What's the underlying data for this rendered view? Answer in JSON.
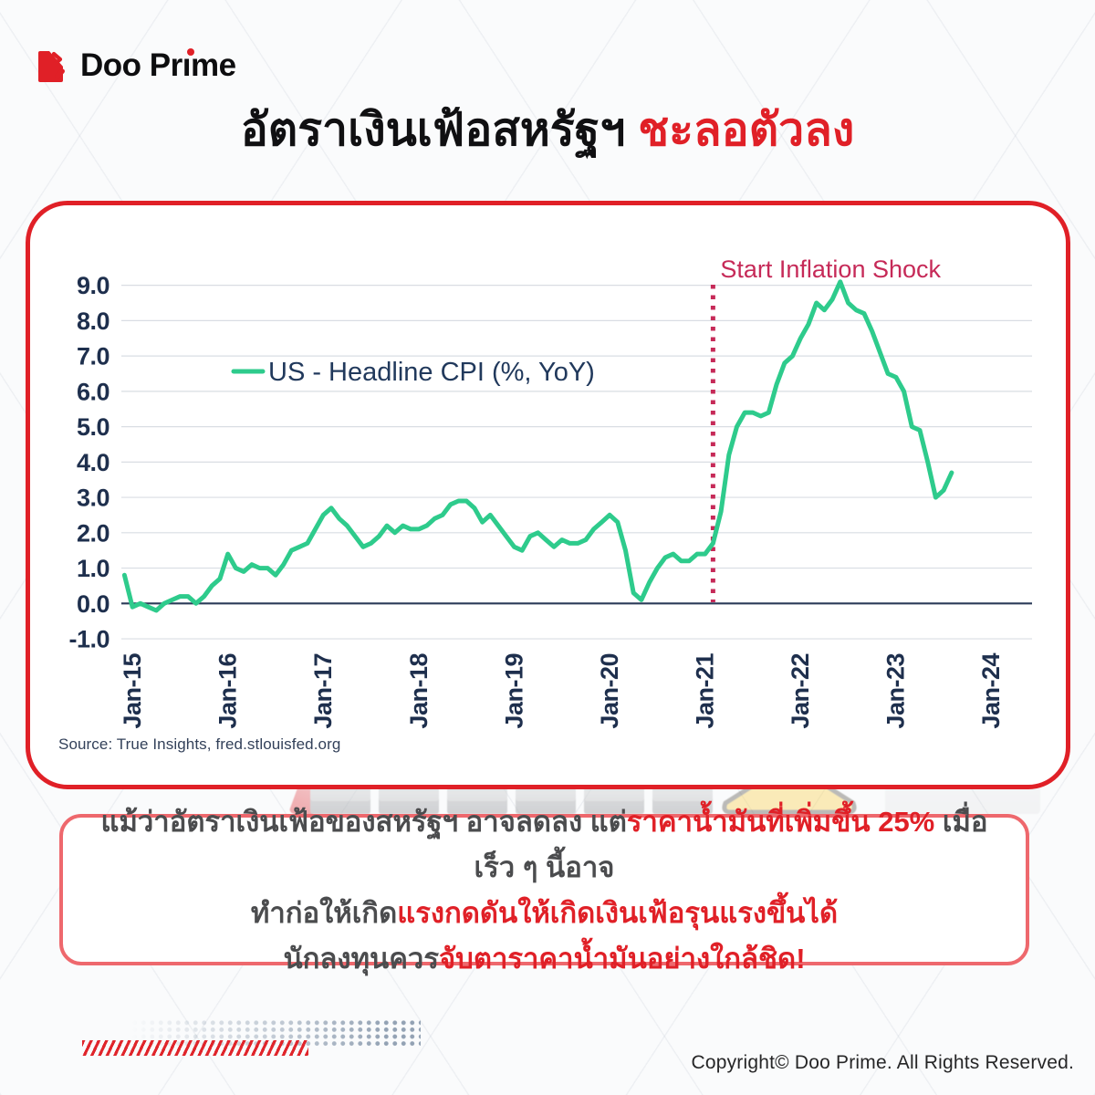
{
  "brand": {
    "name": "Doo Prime"
  },
  "title": {
    "black_part": "อัตราเงินเฟ้อสหรัฐฯ",
    "red_part": "ชะลอตัวลง"
  },
  "chart_data": {
    "type": "line",
    "title": "",
    "xlabel": "",
    "ylabel": "",
    "ylim": [
      -1.0,
      9.0
    ],
    "grid": true,
    "legend_position": "upper-left-inside",
    "y_ticks": [
      9,
      8,
      7,
      6,
      5,
      4,
      3,
      2,
      1,
      0,
      -1
    ],
    "x_ticks": [
      "Jan-15",
      "Jan-16",
      "Jan-17",
      "Jan-18",
      "Jan-19",
      "Jan-20",
      "Jan-21",
      "Jan-22",
      "Jan-23",
      "Jan-24"
    ],
    "legend": [
      {
        "label": "US - Headline CPI (%, YoY)",
        "color": "#2ecb8c"
      }
    ],
    "annotation": {
      "text": "Start Inflation Shock",
      "month": "Feb-21",
      "color": "#c62a58",
      "style": "dotted-vertical-line"
    },
    "series": [
      {
        "name": "US - Headline CPI (%, YoY)",
        "color": "#2ecb8c",
        "months": [
          "Dec-14",
          "Jan-15",
          "Feb-15",
          "Mar-15",
          "Apr-15",
          "May-15",
          "Jun-15",
          "Jul-15",
          "Aug-15",
          "Sep-15",
          "Oct-15",
          "Nov-15",
          "Dec-15",
          "Jan-16",
          "Feb-16",
          "Mar-16",
          "Apr-16",
          "May-16",
          "Jun-16",
          "Jul-16",
          "Aug-16",
          "Sep-16",
          "Oct-16",
          "Nov-16",
          "Dec-16",
          "Jan-17",
          "Feb-17",
          "Mar-17",
          "Apr-17",
          "May-17",
          "Jun-17",
          "Jul-17",
          "Aug-17",
          "Sep-17",
          "Oct-17",
          "Nov-17",
          "Dec-17",
          "Jan-18",
          "Feb-18",
          "Mar-18",
          "Apr-18",
          "May-18",
          "Jun-18",
          "Jul-18",
          "Aug-18",
          "Sep-18",
          "Oct-18",
          "Nov-18",
          "Dec-18",
          "Jan-19",
          "Feb-19",
          "Mar-19",
          "Apr-19",
          "May-19",
          "Jun-19",
          "Jul-19",
          "Aug-19",
          "Sep-19",
          "Oct-19",
          "Nov-19",
          "Dec-19",
          "Jan-20",
          "Feb-20",
          "Mar-20",
          "Apr-20",
          "May-20",
          "Jun-20",
          "Jul-20",
          "Aug-20",
          "Sep-20",
          "Oct-20",
          "Nov-20",
          "Dec-20",
          "Jan-21",
          "Feb-21",
          "Mar-21",
          "Apr-21",
          "May-21",
          "Jun-21",
          "Jul-21",
          "Aug-21",
          "Sep-21",
          "Oct-21",
          "Nov-21",
          "Dec-21",
          "Jan-22",
          "Feb-22",
          "Mar-22",
          "Apr-22",
          "May-22",
          "Jun-22",
          "Jul-22",
          "Aug-22",
          "Sep-22",
          "Oct-22",
          "Nov-22",
          "Dec-22",
          "Jan-23",
          "Feb-23",
          "Mar-23",
          "Apr-23",
          "May-23",
          "Jun-23",
          "Jul-23",
          "Aug-23"
        ],
        "values": [
          0.8,
          -0.1,
          0.0,
          -0.1,
          -0.2,
          0.0,
          0.1,
          0.2,
          0.2,
          0.0,
          0.2,
          0.5,
          0.7,
          1.4,
          1.0,
          0.9,
          1.1,
          1.0,
          1.0,
          0.8,
          1.1,
          1.5,
          1.6,
          1.7,
          2.1,
          2.5,
          2.7,
          2.4,
          2.2,
          1.9,
          1.6,
          1.7,
          1.9,
          2.2,
          2.0,
          2.2,
          2.1,
          2.1,
          2.2,
          2.4,
          2.5,
          2.8,
          2.9,
          2.9,
          2.7,
          2.3,
          2.5,
          2.2,
          1.9,
          1.6,
          1.5,
          1.9,
          2.0,
          1.8,
          1.6,
          1.8,
          1.7,
          1.7,
          1.8,
          2.1,
          2.3,
          2.5,
          2.3,
          1.5,
          0.3,
          0.1,
          0.6,
          1.0,
          1.3,
          1.4,
          1.2,
          1.2,
          1.4,
          1.4,
          1.7,
          2.6,
          4.2,
          5.0,
          5.4,
          5.4,
          5.3,
          5.4,
          6.2,
          6.8,
          7.0,
          7.5,
          7.9,
          8.5,
          8.3,
          8.6,
          9.1,
          8.5,
          8.3,
          8.2,
          7.7,
          7.1,
          6.5,
          6.4,
          6.0,
          5.0,
          4.9,
          4.0,
          3.0,
          3.2,
          3.7
        ]
      }
    ],
    "source": "Source: True Insights, fred.stlouisfed.org"
  },
  "callout": {
    "line1_a": "แม้ว่าอัตราเงินเฟ้อของสหรัฐฯ อาจลดลง แต่",
    "line1_b": "ราคาน้ำมันที่เพิ่มขึ้น 25%",
    "line1_c": " เมื่อเร็ว ๆ นี้อาจ",
    "line2_a": "ทำก่อให้เกิด",
    "line2_b": "แรงกดดันให้เกิดเงินเฟ้อรุนแรงขึ้นได้",
    "line3_a": "นักลงทุนควร",
    "line3_b": "จับตาราคาน้ำมันอย่างใกล้ชิด!"
  },
  "footer": {
    "copyright": "Copyright© Doo Prime. All Rights Reserved."
  },
  "colors": {
    "brand_red": "#e02027",
    "annotation_crimson": "#c62a58",
    "line_green": "#2ecb8c",
    "axis_navy": "#1e2f4d",
    "grid_gray": "#d9dde3",
    "callout_border_salmon": "#ee686d",
    "callout_dark_text": "#4b4c4e",
    "dots_gray": "#93a2b4"
  }
}
